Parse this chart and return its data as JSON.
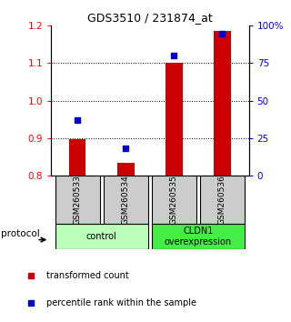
{
  "title": "GDS3510 / 231874_at",
  "samples": [
    "GSM260533",
    "GSM260534",
    "GSM260535",
    "GSM260536"
  ],
  "red_values": [
    0.898,
    0.835,
    1.102,
    1.185
  ],
  "blue_values": [
    37,
    18,
    80,
    95
  ],
  "red_baseline": 0.8,
  "left_ylim": [
    0.8,
    1.2
  ],
  "right_ylim": [
    0,
    100
  ],
  "left_yticks": [
    0.8,
    0.9,
    1.0,
    1.1,
    1.2
  ],
  "right_yticks": [
    0,
    25,
    50,
    75,
    100
  ],
  "right_yticklabels": [
    "0",
    "25",
    "50",
    "75",
    "100%"
  ],
  "dotted_yticks": [
    0.9,
    1.0,
    1.1
  ],
  "bar_color": "#cc0000",
  "dot_color": "#0000cc",
  "group1_label": "control",
  "group2_label": "CLDN1\noverexpression",
  "group1_color": "#bbffbb",
  "group2_color": "#44ee44",
  "protocol_label": "protocol",
  "legend_red": "transformed count",
  "legend_blue": "percentile rank within the sample",
  "bar_width": 0.35,
  "sample_area_color": "#cccccc",
  "x_positions": [
    1,
    2,
    3,
    4
  ]
}
